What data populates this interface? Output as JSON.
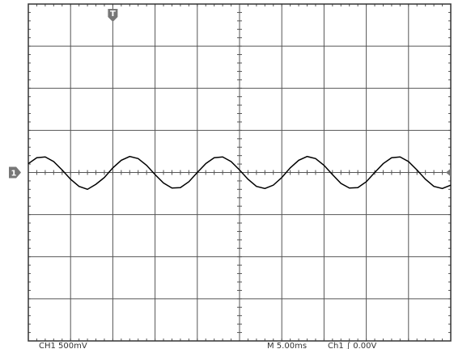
{
  "chart_data": {
    "type": "line",
    "channel_marker": "1",
    "trigger_marker": "T",
    "status": [
      "CH1 500mV",
      "M 5.00ms",
      "Ch1 ∫ 0.00V"
    ],
    "x": [
      0,
      0.2,
      0.4,
      0.6,
      0.8,
      1,
      1.2,
      1.4,
      1.6,
      1.8,
      2,
      2.2,
      2.4,
      2.6,
      2.8,
      3,
      3.2,
      3.4,
      3.6,
      3.8,
      4,
      4.2,
      4.4,
      4.6,
      4.8,
      5,
      5.2,
      5.4,
      5.6,
      5.8,
      6,
      6.2,
      6.4,
      6.6,
      6.8,
      7,
      7.2,
      7.4,
      7.6,
      7.8,
      8,
      8.2,
      8.4,
      8.6,
      8.8,
      9,
      9.2,
      9.4,
      9.6,
      9.8,
      10
    ],
    "series": [
      {
        "color": "#000000",
        "values": [
          0.21,
          0.35,
          0.37,
          0.26,
          0.06,
          -0.16,
          -0.33,
          -0.4,
          -0.28,
          -0.12,
          0.11,
          0.29,
          0.38,
          0.33,
          0.17,
          -0.05,
          -0.25,
          -0.37,
          -0.36,
          -0.22,
          0,
          0.21,
          0.35,
          0.37,
          0.26,
          0.06,
          -0.16,
          -0.33,
          -0.38,
          -0.3,
          -0.12,
          0.11,
          0.29,
          0.38,
          0.33,
          0.17,
          -0.05,
          -0.26,
          -0.37,
          -0.36,
          -0.22,
          0,
          0.21,
          0.35,
          0.37,
          0.26,
          0.06,
          -0.16,
          -0.33,
          -0.38,
          -0.3
        ]
      }
    ],
    "xlim": [
      0,
      10
    ],
    "ylim": [
      -4,
      4
    ],
    "xticks": [
      0,
      1,
      2,
      3,
      4,
      5,
      6,
      7,
      8,
      9,
      10
    ],
    "yticks": [
      -4,
      -3,
      -2,
      -1,
      0,
      1,
      2,
      3,
      4
    ],
    "grid": true
  }
}
